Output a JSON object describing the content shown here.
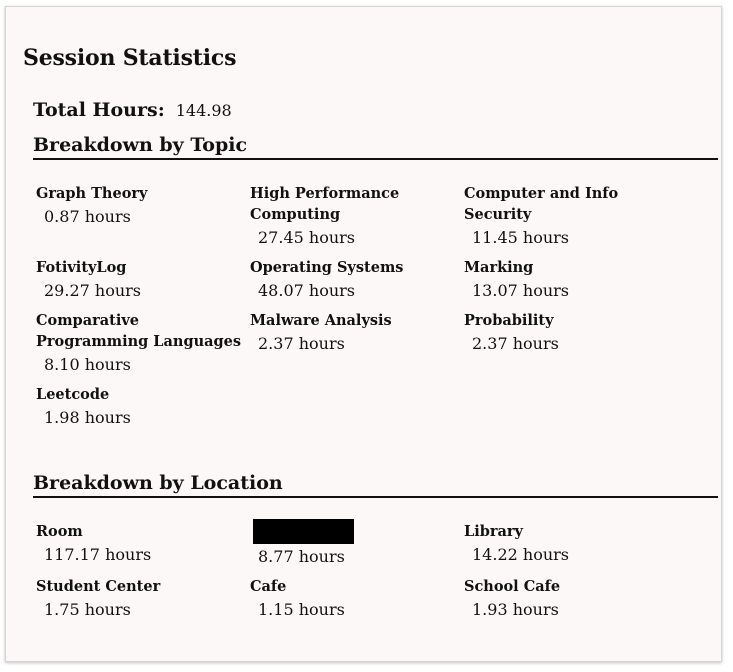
{
  "title": "Session Statistics",
  "total": {
    "label": "Total Hours:",
    "value": "144.98"
  },
  "topics": {
    "heading": "Breakdown by Topic",
    "items": [
      {
        "name": "Graph Theory",
        "hours": "0.87 hours"
      },
      {
        "name": "High Performance Computing",
        "hours": "27.45 hours"
      },
      {
        "name": "Computer and Info Security",
        "hours": "11.45 hours"
      },
      {
        "name": "FotivityLog",
        "hours": "29.27 hours"
      },
      {
        "name": "Operating Systems",
        "hours": "48.07 hours"
      },
      {
        "name": "Marking",
        "hours": "13.07 hours"
      },
      {
        "name": "Comparative Programming Languages",
        "hours": "8.10 hours"
      },
      {
        "name": "Malware Analysis",
        "hours": "2.37 hours"
      },
      {
        "name": "Probability",
        "hours": "2.37 hours"
      },
      {
        "name": "Leetcode",
        "hours": "1.98 hours"
      }
    ]
  },
  "locations": {
    "heading": "Breakdown by Location",
    "items": [
      {
        "name": "Room",
        "hours": "117.17 hours"
      },
      {
        "name": "",
        "hours": "8.77 hours",
        "redacted": true
      },
      {
        "name": "Library",
        "hours": "14.22 hours"
      },
      {
        "name": "Student Center",
        "hours": "1.75 hours"
      },
      {
        "name": "Cafe",
        "hours": "1.15 hours"
      },
      {
        "name": "School Cafe",
        "hours": "1.93 hours"
      }
    ]
  }
}
